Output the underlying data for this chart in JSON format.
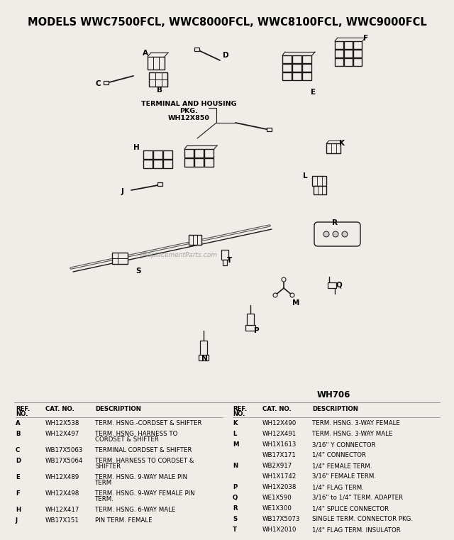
{
  "title": "MODELS WWC7500FCL, WWC8000FCL, WWC8100FCL, WWC9000FCL",
  "title_fontsize": 10.5,
  "bg_color": "#f0ede8",
  "diagram_label": "WH706",
  "watermark": "eReplacementParts.com",
  "terminal_pkg_label1": "TERMINAL AND HOUSING",
  "terminal_pkg_label2": "PKG.",
  "terminal_pkg_label3": "WH12X850",
  "left_rows": [
    [
      "A",
      "WH12X538",
      "TERM. HSNG.-CORDSET & SHIFTER"
    ],
    [
      "B",
      "WH12X497",
      "TERM. HSNG. HARNESS TO",
      "CORDSET & SHIFTER"
    ],
    [
      "C",
      "WB17X5063",
      "TERMINAL CORDSET & SHIFTER"
    ],
    [
      "D",
      "WB17X5064",
      "TERM. HARNESS TO CORDSET &",
      "SHIFTER"
    ],
    [
      "E",
      "WH12X489",
      "TERM. HSNG. 9-WAY MALE PIN",
      "TERM"
    ],
    [
      "F",
      "WH12X498",
      "TERM. HSNG. 9-WAY FEMALE PIN",
      "TERM."
    ],
    [
      "H",
      "WH12X417",
      "TERM. HSNG. 6-WAY MALE"
    ],
    [
      "J",
      "WB17X151",
      "PIN TERM. FEMALE"
    ]
  ],
  "right_rows": [
    [
      "K",
      "WH12X490",
      "TERM. HSNG. 3-WAY FEMALE"
    ],
    [
      "L",
      "WH12X491",
      "TERM. HSNG. 3-WAY MALE"
    ],
    [
      "M",
      "WH1X1613",
      "3/16\" Y CONNECTOR"
    ],
    [
      "",
      "WB17X171",
      "1/4\" CONNECTOR"
    ],
    [
      "N",
      "WB2X917",
      "1/4\" FEMALE TERM."
    ],
    [
      "",
      "WH1X1742",
      "3/16\" FEMALE TERM."
    ],
    [
      "P",
      "WH1X2038",
      "1/4\" FLAG TERM."
    ],
    [
      "Q",
      "WE1X590",
      "3/16\" to 1/4\" TERM. ADAPTER"
    ],
    [
      "R",
      "WE1X300",
      "1/4\" SPLICE CONNECTOR"
    ],
    [
      "S",
      "WB17X5073",
      "SINGLE TERM. CONNECTOR PKG."
    ],
    [
      "T",
      "WH1X2010",
      "1/4\" FLAG TERM. INSULATOR"
    ]
  ]
}
